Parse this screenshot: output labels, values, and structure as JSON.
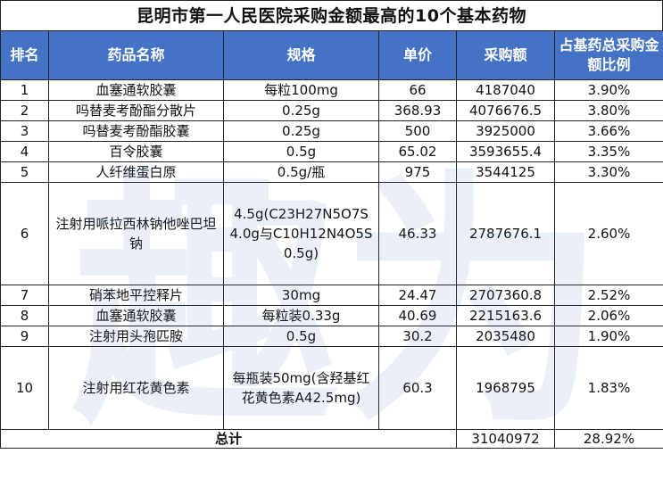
{
  "title": "昆明市第一人民医院采购金额最高的10个基本药物",
  "headers": {
    "rank": "排名",
    "name": "药品名称",
    "spec": "规格",
    "price": "单价",
    "amount": "采购额",
    "ratio": "占基药总采购金额比例"
  },
  "rows": [
    {
      "rank": "1",
      "name": "血塞通软胶囊",
      "spec": "每粒100mg",
      "price": "66",
      "amount": "4187040",
      "ratio": "3.90%"
    },
    {
      "rank": "2",
      "name": "吗替麦考酚酯分散片",
      "spec": "0.25g",
      "price": "368.93",
      "amount": "4076676.5",
      "ratio": "3.80%"
    },
    {
      "rank": "3",
      "name": "吗替麦考酚酯胶囊",
      "spec": "0.25g",
      "price": "500",
      "amount": "3925000",
      "ratio": "3.66%"
    },
    {
      "rank": "4",
      "name": "百令胶囊",
      "spec": "0.5g",
      "price": "65.02",
      "amount": "3593655.4",
      "ratio": "3.35%"
    },
    {
      "rank": "5",
      "name": "人纤维蛋白原",
      "spec": "0.5g/瓶",
      "price": "975",
      "amount": "3544125",
      "ratio": "3.30%"
    },
    {
      "rank": "6",
      "name": "注射用哌拉西林钠他唑巴坦钠",
      "spec": "4.5g(C23H27N5O7S 4.0g与C10H12N4O5S 0.5g)",
      "price": "46.33",
      "amount": "2787676.1",
      "ratio": "2.60%"
    },
    {
      "rank": "7",
      "name": "硝苯地平控释片",
      "spec": "30mg",
      "price": "24.47",
      "amount": "2707360.8",
      "ratio": "2.52%"
    },
    {
      "rank": "8",
      "name": "血塞通软胶囊",
      "spec": "每粒装0.33g",
      "price": "40.69",
      "amount": "2215163.6",
      "ratio": "2.06%"
    },
    {
      "rank": "9",
      "name": "注射用头孢匹胺",
      "spec": "0.5g",
      "price": "30.2",
      "amount": "2035480",
      "ratio": "1.90%"
    },
    {
      "rank": "10",
      "name": "注射用红花黄色素",
      "spec": "每瓶装50mg(含羟基红花黄色素A42.5mg)",
      "price": "60.3",
      "amount": "1968795",
      "ratio": "1.83%"
    }
  ],
  "total": {
    "label": "总计",
    "amount": "31040972",
    "ratio": "28.92%"
  },
  "watermark": "趣为",
  "colors": {
    "header_bg": "#4472c4",
    "header_text": "#ffffff",
    "border": "#222222"
  }
}
